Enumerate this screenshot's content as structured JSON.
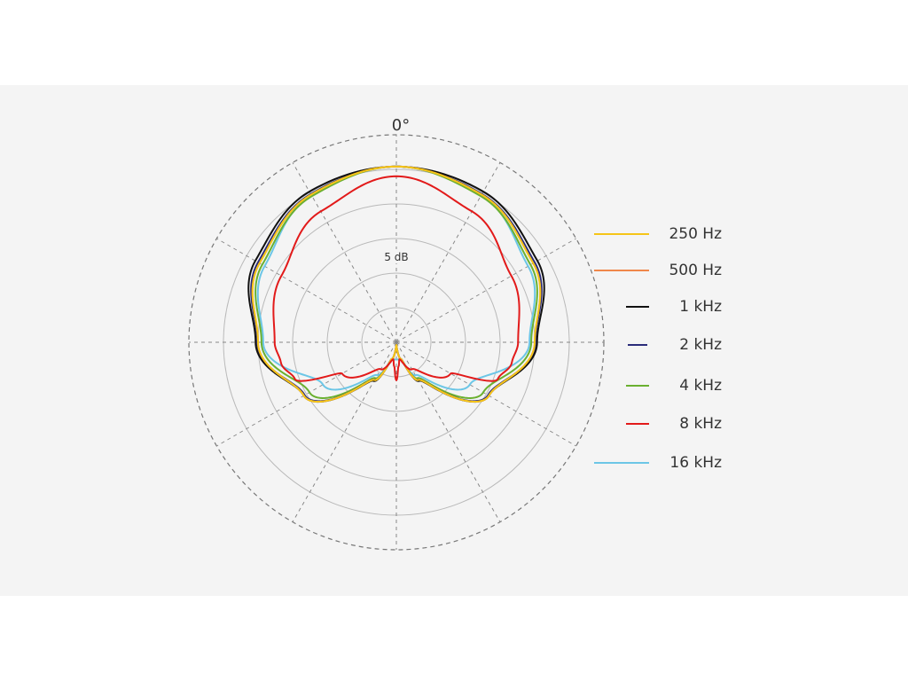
{
  "chart_data": {
    "type": "polar",
    "angle_label": "0°",
    "ring_label": "5 dB",
    "rings": 6,
    "spokes": 12,
    "series": [
      {
        "name": "250 Hz",
        "color": "#f5c518",
        "points": [
          [
            0,
            5.08
          ],
          [
            30,
            4.93
          ],
          [
            60,
            4.57
          ],
          [
            90,
            4.0
          ],
          [
            120,
            3.09
          ],
          [
            150,
            1.26
          ],
          [
            165,
            0.5
          ],
          [
            180,
            0.08
          ]
        ]
      },
      {
        "name": "500 Hz",
        "color": "#f0874a",
        "points": [
          [
            0,
            5.08
          ],
          [
            30,
            4.93
          ],
          [
            60,
            4.57
          ],
          [
            90,
            4.0
          ],
          [
            120,
            3.09
          ],
          [
            150,
            1.26
          ],
          [
            165,
            0.5
          ],
          [
            180,
            0.08
          ]
        ]
      },
      {
        "name": "1 kHz",
        "color": "#111111",
        "points": [
          [
            0,
            5.08
          ],
          [
            30,
            5.03
          ],
          [
            60,
            4.71
          ],
          [
            90,
            4.07
          ],
          [
            120,
            3.09
          ],
          [
            150,
            1.29
          ],
          [
            165,
            0.5
          ],
          [
            180,
            0.08
          ]
        ]
      },
      {
        "name": "2 kHz",
        "color": "#2a2c7a",
        "points": [
          [
            0,
            5.08
          ],
          [
            30,
            4.95
          ],
          [
            60,
            4.62
          ],
          [
            90,
            4.02
          ],
          [
            120,
            3.06
          ],
          [
            150,
            1.25
          ],
          [
            165,
            0.5
          ],
          [
            180,
            0.08
          ]
        ]
      },
      {
        "name": "4 kHz",
        "color": "#6ab030",
        "points": [
          [
            0,
            5.08
          ],
          [
            30,
            4.88
          ],
          [
            60,
            4.48
          ],
          [
            90,
            3.9
          ],
          [
            120,
            2.9
          ],
          [
            150,
            1.2
          ],
          [
            165,
            0.5
          ],
          [
            180,
            0.08
          ]
        ]
      },
      {
        "name": "8 kHz",
        "color": "#e21a1a",
        "points": [
          [
            0,
            4.8
          ],
          [
            30,
            4.37
          ],
          [
            60,
            3.84
          ],
          [
            90,
            3.52
          ],
          [
            100,
            3.39
          ],
          [
            110,
            3.12
          ],
          [
            120,
            1.81
          ],
          [
            150,
            0.9
          ],
          [
            170,
            0.5
          ],
          [
            175,
            0.7
          ],
          [
            180,
            1.1
          ]
        ]
      },
      {
        "name": "16 kHz",
        "color": "#6cc6e6",
        "points": [
          [
            0,
            5.08
          ],
          [
            30,
            4.9
          ],
          [
            60,
            4.4
          ],
          [
            90,
            3.85
          ],
          [
            120,
            2.45
          ],
          [
            150,
            1.1
          ],
          [
            165,
            0.5
          ],
          [
            180,
            0.5
          ]
        ]
      }
    ]
  }
}
